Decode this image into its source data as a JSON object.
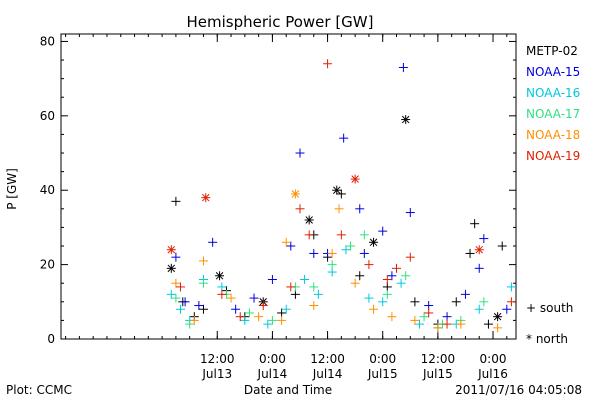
{
  "chart_data": {
    "type": "scatter",
    "title": "Hemispheric Power [GW]",
    "ylabel": "P [GW]",
    "xlabel": "Date and Time",
    "ylim": [
      0,
      82
    ],
    "yticks": [
      0,
      20,
      40,
      60,
      80
    ],
    "xlim": [
      "2011-07-12T02:00",
      "2011-07-16T05:00"
    ],
    "xticks": [
      {
        "time": "2011-07-13T12:00",
        "label_top": "12:00",
        "label_bottom": "Jul13"
      },
      {
        "time": "2011-07-14T00:00",
        "label_top": "0:00",
        "label_bottom": "Jul14"
      },
      {
        "time": "2011-07-14T12:00",
        "label_top": "12:00",
        "label_bottom": "Jul14"
      },
      {
        "time": "2011-07-15T00:00",
        "label_top": "0:00",
        "label_bottom": "Jul15"
      },
      {
        "time": "2011-07-15T12:00",
        "label_top": "12:00",
        "label_bottom": "Jul15"
      },
      {
        "time": "2011-07-16T00:00",
        "label_top": "0:00",
        "label_bottom": "Jul16"
      }
    ],
    "legend_position": "right",
    "marker_legend": {
      "south": "+ south",
      "north": "* north"
    },
    "footer_left": "Plot: CCMC",
    "footer_right": "2011/07/16 04:05:08",
    "series": [
      {
        "name": "METP-02",
        "color": "#000000",
        "points": [
          [
            "2011-07-13T02:00",
            19,
            "n"
          ],
          [
            "2011-07-13T03:00",
            37,
            "s"
          ],
          [
            "2011-07-13T04:30",
            10,
            "s"
          ],
          [
            "2011-07-13T07:00",
            6,
            "s"
          ],
          [
            "2011-07-13T09:00",
            8,
            "s"
          ],
          [
            "2011-07-13T12:30",
            17,
            "n"
          ],
          [
            "2011-07-13T14:00",
            13,
            "s"
          ],
          [
            "2011-07-13T18:00",
            6,
            "s"
          ],
          [
            "2011-07-13T22:00",
            10,
            "n"
          ],
          [
            "2011-07-14T02:00",
            7,
            "s"
          ],
          [
            "2011-07-14T05:00",
            12,
            "s"
          ],
          [
            "2011-07-14T08:00",
            32,
            "n"
          ],
          [
            "2011-07-14T09:00",
            28,
            "s"
          ],
          [
            "2011-07-14T12:00",
            22,
            "s"
          ],
          [
            "2011-07-14T14:00",
            40,
            "n"
          ],
          [
            "2011-07-14T15:00",
            39,
            "s"
          ],
          [
            "2011-07-14T19:00",
            17,
            "s"
          ],
          [
            "2011-07-14T22:00",
            26,
            "n"
          ],
          [
            "2011-07-15T01:00",
            14,
            "s"
          ],
          [
            "2011-07-15T05:00",
            59,
            "n"
          ],
          [
            "2011-07-15T07:00",
            10,
            "s"
          ],
          [
            "2011-07-15T12:00",
            4,
            "s"
          ],
          [
            "2011-07-15T16:00",
            10,
            "s"
          ],
          [
            "2011-07-15T19:00",
            23,
            "s"
          ],
          [
            "2011-07-15T20:00",
            31,
            "s"
          ],
          [
            "2011-07-15T23:00",
            4,
            "s"
          ],
          [
            "2011-07-16T01:00",
            6,
            "n"
          ],
          [
            "2011-07-16T02:00",
            25,
            "s"
          ]
        ]
      },
      {
        "name": "NOAA-15",
        "color": "#0000e0",
        "points": [
          [
            "2011-07-13T03:00",
            22,
            "s"
          ],
          [
            "2011-07-13T05:00",
            10,
            "s"
          ],
          [
            "2011-07-13T08:00",
            9,
            "s"
          ],
          [
            "2011-07-13T11:00",
            26,
            "s"
          ],
          [
            "2011-07-13T16:00",
            8,
            "s"
          ],
          [
            "2011-07-13T20:00",
            11,
            "s"
          ],
          [
            "2011-07-14T00:00",
            16,
            "s"
          ],
          [
            "2011-07-14T04:00",
            25,
            "s"
          ],
          [
            "2011-07-14T06:00",
            50,
            "s"
          ],
          [
            "2011-07-14T09:00",
            23,
            "s"
          ],
          [
            "2011-07-14T12:00",
            23,
            "s"
          ],
          [
            "2011-07-14T15:30",
            54,
            "s"
          ],
          [
            "2011-07-14T19:00",
            35,
            "s"
          ],
          [
            "2011-07-14T20:00",
            23,
            "s"
          ],
          [
            "2011-07-15T00:00",
            29,
            "s"
          ],
          [
            "2011-07-15T02:00",
            17,
            "s"
          ],
          [
            "2011-07-15T04:30",
            73,
            "s"
          ],
          [
            "2011-07-15T06:00",
            34,
            "s"
          ],
          [
            "2011-07-15T10:00",
            9,
            "s"
          ],
          [
            "2011-07-15T14:00",
            6,
            "s"
          ],
          [
            "2011-07-15T18:00",
            12,
            "s"
          ],
          [
            "2011-07-15T21:00",
            19,
            "s"
          ],
          [
            "2011-07-15T22:00",
            27,
            "s"
          ],
          [
            "2011-07-16T03:00",
            8,
            "s"
          ]
        ]
      },
      {
        "name": "NOAA-16",
        "color": "#00c8e0",
        "points": [
          [
            "2011-07-13T02:00",
            12,
            "s"
          ],
          [
            "2011-07-13T04:00",
            8,
            "s"
          ],
          [
            "2011-07-13T06:00",
            5,
            "s"
          ],
          [
            "2011-07-13T09:00",
            16,
            "s"
          ],
          [
            "2011-07-13T13:00",
            14,
            "s"
          ],
          [
            "2011-07-13T18:00",
            5,
            "s"
          ],
          [
            "2011-07-13T23:00",
            4,
            "s"
          ],
          [
            "2011-07-14T03:00",
            8,
            "s"
          ],
          [
            "2011-07-14T07:00",
            16,
            "s"
          ],
          [
            "2011-07-14T10:00",
            12,
            "s"
          ],
          [
            "2011-07-14T13:00",
            18,
            "s"
          ],
          [
            "2011-07-14T16:00",
            24,
            "s"
          ],
          [
            "2011-07-14T21:00",
            11,
            "s"
          ],
          [
            "2011-07-15T00:00",
            10,
            "s"
          ],
          [
            "2011-07-15T04:00",
            15,
            "s"
          ],
          [
            "2011-07-15T08:00",
            4,
            "s"
          ],
          [
            "2011-07-15T12:00",
            3,
            "s"
          ],
          [
            "2011-07-15T16:00",
            4,
            "s"
          ],
          [
            "2011-07-15T21:00",
            8,
            "s"
          ],
          [
            "2011-07-16T04:00",
            14,
            "s"
          ]
        ]
      },
      {
        "name": "NOAA-17",
        "color": "#30e080",
        "points": [
          [
            "2011-07-13T03:00",
            11,
            "s"
          ],
          [
            "2011-07-13T06:00",
            4,
            "s"
          ],
          [
            "2011-07-13T09:00",
            15,
            "s"
          ],
          [
            "2011-07-13T14:00",
            12,
            "s"
          ],
          [
            "2011-07-13T19:00",
            7,
            "s"
          ],
          [
            "2011-07-14T00:00",
            5,
            "s"
          ],
          [
            "2011-07-14T05:00",
            14,
            "s"
          ],
          [
            "2011-07-14T09:00",
            14,
            "s"
          ],
          [
            "2011-07-14T13:00",
            20,
            "s"
          ],
          [
            "2011-07-14T17:00",
            25,
            "s"
          ],
          [
            "2011-07-14T20:00",
            28,
            "s"
          ],
          [
            "2011-07-15T01:00",
            12,
            "s"
          ],
          [
            "2011-07-15T05:00",
            17,
            "s"
          ],
          [
            "2011-07-15T09:00",
            6,
            "s"
          ],
          [
            "2011-07-15T13:00",
            4,
            "s"
          ],
          [
            "2011-07-15T17:00",
            5,
            "s"
          ],
          [
            "2011-07-15T22:00",
            10,
            "s"
          ]
        ]
      },
      {
        "name": "NOAA-18",
        "color": "#ff9000",
        "points": [
          [
            "2011-07-13T03:00",
            15,
            "s"
          ],
          [
            "2011-07-13T07:00",
            5,
            "s"
          ],
          [
            "2011-07-13T09:00",
            21,
            "s"
          ],
          [
            "2011-07-13T15:00",
            11,
            "s"
          ],
          [
            "2011-07-13T21:00",
            6,
            "s"
          ],
          [
            "2011-07-14T02:00",
            5,
            "s"
          ],
          [
            "2011-07-14T03:00",
            26,
            "s"
          ],
          [
            "2011-07-14T05:00",
            39,
            "n"
          ],
          [
            "2011-07-14T09:00",
            9,
            "s"
          ],
          [
            "2011-07-14T13:00",
            23,
            "s"
          ],
          [
            "2011-07-14T14:30",
            35,
            "s"
          ],
          [
            "2011-07-14T18:00",
            15,
            "s"
          ],
          [
            "2011-07-14T22:00",
            8,
            "s"
          ],
          [
            "2011-07-15T02:00",
            6,
            "s"
          ],
          [
            "2011-07-15T07:00",
            5,
            "s"
          ],
          [
            "2011-07-15T12:00",
            3,
            "s"
          ],
          [
            "2011-07-15T17:00",
            4,
            "s"
          ],
          [
            "2011-07-16T01:00",
            3,
            "s"
          ]
        ]
      },
      {
        "name": "NOAA-19",
        "color": "#e02000",
        "points": [
          [
            "2011-07-13T02:00",
            24,
            "n"
          ],
          [
            "2011-07-13T04:00",
            14,
            "s"
          ],
          [
            "2011-07-13T09:30",
            38,
            "n"
          ],
          [
            "2011-07-13T13:00",
            12,
            "s"
          ],
          [
            "2011-07-13T17:00",
            6,
            "s"
          ],
          [
            "2011-07-13T22:00",
            9,
            "s"
          ],
          [
            "2011-07-14T04:00",
            14,
            "s"
          ],
          [
            "2011-07-14T06:00",
            35,
            "s"
          ],
          [
            "2011-07-14T08:00",
            28,
            "s"
          ],
          [
            "2011-07-14T12:00",
            74,
            "s"
          ],
          [
            "2011-07-14T15:00",
            28,
            "s"
          ],
          [
            "2011-07-14T18:00",
            43,
            "n"
          ],
          [
            "2011-07-14T21:00",
            20,
            "s"
          ],
          [
            "2011-07-15T01:00",
            16,
            "s"
          ],
          [
            "2011-07-15T03:00",
            19,
            "s"
          ],
          [
            "2011-07-15T06:00",
            22,
            "s"
          ],
          [
            "2011-07-15T10:00",
            7,
            "s"
          ],
          [
            "2011-07-15T14:00",
            4,
            "s"
          ],
          [
            "2011-07-15T21:00",
            24,
            "n"
          ],
          [
            "2011-07-16T04:00",
            10,
            "s"
          ]
        ]
      }
    ]
  }
}
